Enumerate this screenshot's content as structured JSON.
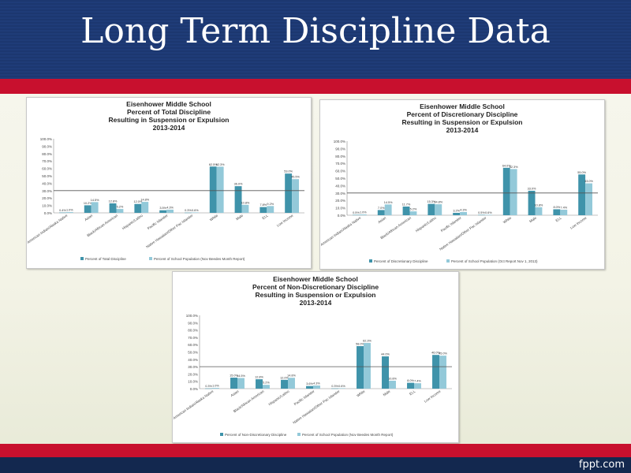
{
  "slide": {
    "title": "Long Term Discipline Data",
    "brand": "fppt.com"
  },
  "colors": {
    "series1": "#3f93aa",
    "series2": "#93c9d9",
    "reference_line": "#555555"
  },
  "chart_data": [
    {
      "type": "bar",
      "title_lines": [
        "Eisenhower Middle School",
        "Percent of Total Discipline",
        "Resulting in Suspension or Expulsion",
        "2013-2014"
      ],
      "categories": [
        "American Indian/Alaska Native",
        "Asian",
        "Black/African American",
        "Hispanic/Latino",
        "Pacific Islander",
        "Native Hawaiian/Other Pac Islander",
        "White",
        "Male",
        "ELL",
        "Low Income"
      ],
      "y_ticks": [
        "0.0%",
        "10.0%",
        "20.0%",
        "30.0%",
        "40.0%",
        "50.0%",
        "60.0%",
        "70.0%",
        "80.0%",
        "90.0%",
        "100.0%"
      ],
      "ylim": [
        0,
        100
      ],
      "reference_value": 30,
      "series": [
        {
          "name": "Percent of Total Discipline",
          "values": [
            0.4,
            10.2,
            12.8,
            12.0,
            3.5,
            0.3,
            62.5,
            36.0,
            7.8,
            53.0
          ]
        },
        {
          "name": "Percent of School Population (Nov Beedes Month Report)",
          "values": [
            1.0,
            14.5,
            5.2,
            14.8,
            4.3,
            0.6,
            62.3,
            10.8,
            9.2,
            45.5
          ]
        }
      ],
      "data_labels": [
        [
          "0.4%",
          "10.2%",
          "12.8%",
          "12.0%",
          "3.5%",
          "0.3%",
          "62.5%",
          "36.0%",
          "7.8%",
          "53.0%"
        ],
        [
          "1.0%",
          "14.5%",
          "5.2%",
          "14.8%",
          "4.3%",
          "0.6%",
          "62.3%",
          "10.8%",
          "9.2%",
          "45.5%"
        ]
      ]
    },
    {
      "type": "bar",
      "title_lines": [
        "Eisenhower Middle School",
        "Percent of Discretionary Discipline",
        "Resulting in Suspension or Expulsion",
        "2013-2014"
      ],
      "categories": [
        "American Indian/Alaska Native",
        "Asian",
        "Black/African American",
        "Hispanic/Latino",
        "Pacific Islander",
        "Native Hawaiian/Other Pac Islander",
        "White",
        "Male",
        "ELL",
        "Low Income"
      ],
      "y_ticks": [
        "0.0%",
        "10.0%",
        "20.0%",
        "30.0%",
        "40.0%",
        "50.0%",
        "60.0%",
        "70.0%",
        "80.0%",
        "90.0%",
        "100.0%"
      ],
      "ylim": [
        0,
        100
      ],
      "reference_value": 30,
      "series": [
        {
          "name": "Percent of Discretionary Discipline",
          "values": [
            0.5,
            7.0,
            11.7,
            15.3,
            3.2,
            0.5,
            64.0,
            33.0,
            8.0,
            55.0
          ]
        },
        {
          "name": "Percent of School Population (Oct Report Nov 1, 2013)",
          "values": [
            1.0,
            14.5,
            5.2,
            14.8,
            4.3,
            0.6,
            62.3,
            10.8,
            7.4,
            43.0
          ]
        }
      ],
      "data_labels": [
        [
          "0.5%",
          "7.0%",
          "11.7%",
          "15.3%",
          "3.2%",
          "0.5%",
          "64.0%",
          "33.0%",
          "8.0%",
          "55.0%"
        ],
        [
          "1.0%",
          "14.5%",
          "5.2%",
          "14.8%",
          "4.3%",
          "0.6%",
          "62.3%",
          "10.8%",
          "7.4%",
          "43.0%"
        ]
      ]
    },
    {
      "type": "bar",
      "title_lines": [
        "Eisenhower Middle School",
        "Percent of Non-Discretionary Discipline",
        "Resulting in Suspension or Expulsion",
        "2013-2014"
      ],
      "categories": [
        "American Indian/Alaska Native",
        "Asian",
        "Black/African American",
        "Hispanic/Latino",
        "Pacific Islander",
        "Native Hawaiian/Other Pac Islander",
        "White",
        "Male",
        "ELL",
        "Low Income"
      ],
      "y_ticks": [
        "0.0%",
        "10.0%",
        "20.0%",
        "30.0%",
        "40.0%",
        "50.0%",
        "60.0%",
        "70.0%",
        "80.0%",
        "90.0%",
        "100.0%"
      ],
      "ylim": [
        0,
        100
      ],
      "reference_value": 30,
      "series": [
        {
          "name": "Percent of Non-Discretionary Discipline",
          "values": [
            0.3,
            15.0,
            12.8,
            12.0,
            3.6,
            0.3,
            58.0,
            44.0,
            8.0,
            46.0
          ]
        },
        {
          "name": "Percent of School Population (Nov Beedes Month Report)",
          "values": [
            1.0,
            14.5,
            5.2,
            14.8,
            4.3,
            0.6,
            62.3,
            10.8,
            7.4,
            45.0
          ]
        }
      ],
      "data_labels": [
        [
          "0.3%",
          "15.0%",
          "12.8%",
          "12.0%",
          "3.6%",
          "0.3%",
          "58.0%",
          "44.0%",
          "8.0%",
          "46.0%"
        ],
        [
          "1.0%",
          "14.5%",
          "5.2%",
          "14.8%",
          "4.3%",
          "0.6%",
          "62.3%",
          "10.8%",
          "7.4%",
          "45.0%"
        ]
      ]
    }
  ]
}
